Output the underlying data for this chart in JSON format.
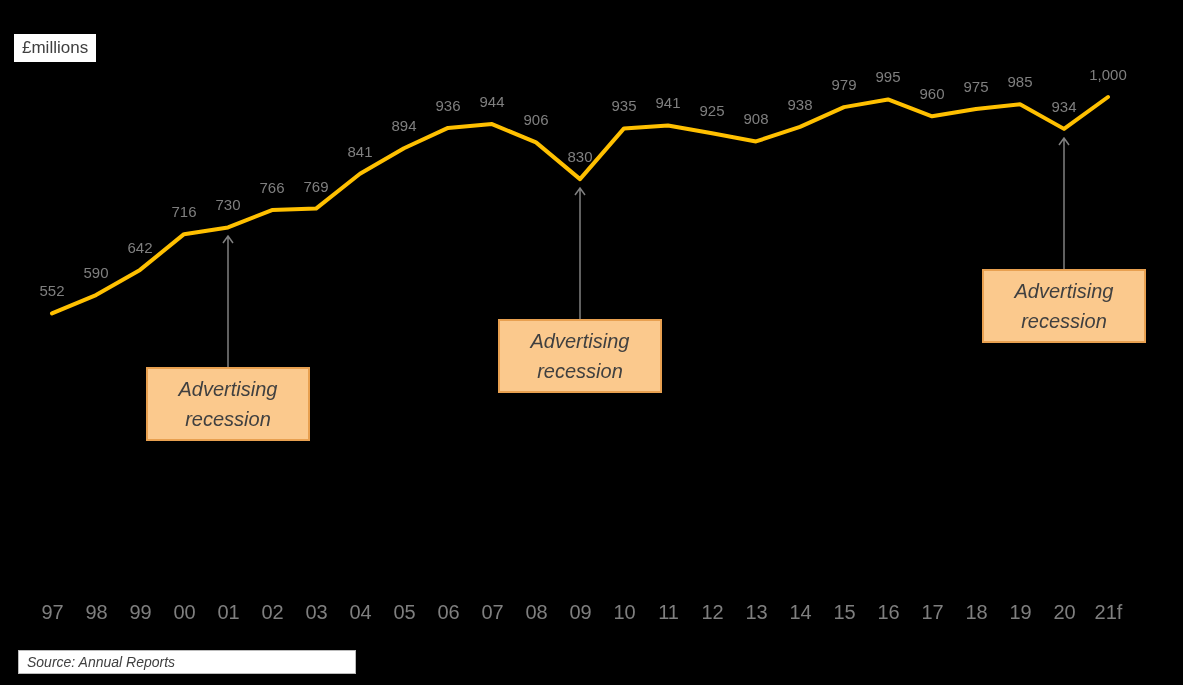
{
  "chart_data": {
    "type": "line",
    "ylabel": "£millions",
    "categories": [
      "97",
      "98",
      "99",
      "00",
      "01",
      "02",
      "03",
      "04",
      "05",
      "06",
      "07",
      "08",
      "09",
      "10",
      "11",
      "12",
      "13",
      "14",
      "15",
      "16",
      "17",
      "18",
      "19",
      "20",
      "21f"
    ],
    "series": [
      {
        "color": "#ffc000",
        "values": [
          552,
          590,
          642,
          716,
          730,
          766,
          769,
          841,
          894,
          936,
          944,
          906,
          830,
          935,
          941,
          925,
          908,
          938,
          979,
          995,
          960,
          975,
          985,
          934,
          1000
        ],
        "value_labels": [
          "552",
          "590",
          "642",
          "716",
          "730",
          "766",
          "769",
          "841",
          "894",
          "936",
          "944",
          "906",
          "830",
          "935",
          "941",
          "925",
          "908",
          "938",
          "979",
          "995",
          "960",
          "975",
          "985",
          "934",
          "1,000"
        ]
      }
    ],
    "annotations": [
      {
        "text": "Advertising recession",
        "x": "01"
      },
      {
        "text": "Advertising recession",
        "x": "09"
      },
      {
        "text": "Advertising recession",
        "x": "20"
      },
      "Source: Annual Reports"
    ]
  }
}
